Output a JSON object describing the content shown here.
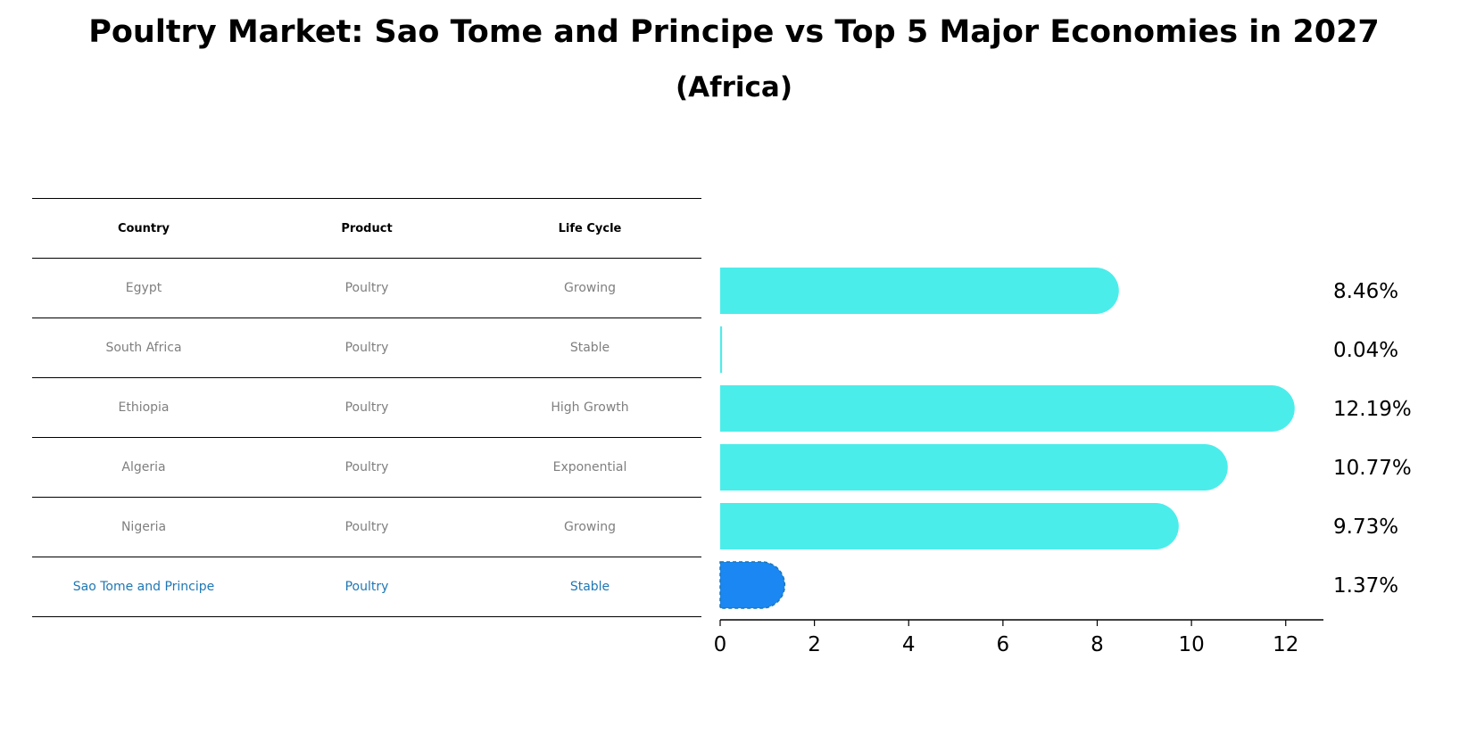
{
  "chart_data": {
    "type": "bar",
    "orientation": "horizontal",
    "title": "Poultry Market: Sao Tome and Principe vs Top 5 Major Economies in 2027",
    "subtitle": "(Africa)",
    "categories": [
      "Egypt",
      "South Africa",
      "Ethiopia",
      "Algeria",
      "Nigeria",
      "Sao Tome and Principe"
    ],
    "values": [
      8.46,
      0.04,
      12.19,
      10.77,
      9.73,
      1.37
    ],
    "value_labels": [
      "8.46%",
      "0.04%",
      "12.19%",
      "10.77%",
      "9.73%",
      "1.37%"
    ],
    "highlight_index": 5,
    "xlim": [
      0,
      12.8
    ],
    "xticks": [
      0,
      2,
      4,
      6,
      8,
      10,
      12
    ],
    "xlabel": "",
    "ylabel": "",
    "colors": {
      "bar": "#4BEDEA",
      "highlight": "#1A87F2",
      "highlight_text": "#1f77b4"
    }
  },
  "table": {
    "headers": [
      "Country",
      "Product",
      "Life Cycle"
    ],
    "rows": [
      [
        "Egypt",
        "Poultry",
        "Growing"
      ],
      [
        "South Africa",
        "Poultry",
        "Stable"
      ],
      [
        "Ethiopia",
        "Poultry",
        "High Growth"
      ],
      [
        "Algeria",
        "Poultry",
        "Exponential"
      ],
      [
        "Nigeria",
        "Poultry",
        "Growing"
      ],
      [
        "Sao Tome and Principe",
        "Poultry",
        "Stable"
      ]
    ]
  }
}
